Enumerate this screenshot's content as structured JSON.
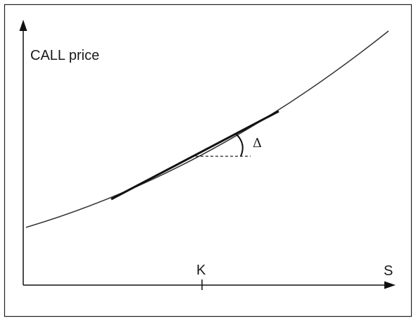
{
  "diagram": {
    "y_axis_label": "CALL price",
    "x_axis_label": "S",
    "strike_label": "K",
    "tangent_slope_label": "Δ"
  },
  "elements": [
    "y-axis-arrow",
    "x-axis-arrow",
    "call-price-curve",
    "tangent-line",
    "horizontal-reference-line",
    "delta-angle-arc",
    "strike-tick"
  ]
}
